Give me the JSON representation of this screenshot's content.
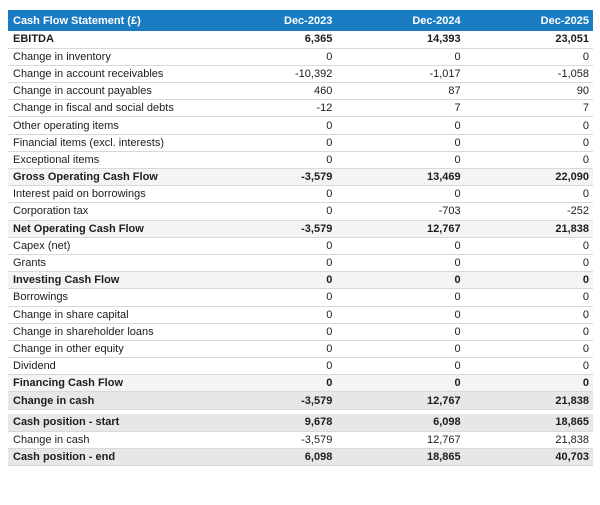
{
  "table": {
    "title": "Cash Flow Statement (£)",
    "columns": [
      "Dec-2023",
      "Dec-2024",
      "Dec-2025"
    ],
    "sections": [
      {
        "name": "cash-flow",
        "rows": [
          {
            "label": "EBITDA",
            "values": [
              "6,365",
              "14,393",
              "23,051"
            ],
            "style": "bold"
          },
          {
            "label": "Change in inventory",
            "values": [
              "0",
              "0",
              "0"
            ],
            "style": "normal"
          },
          {
            "label": "Change in account receivables",
            "values": [
              "-10,392",
              "-1,017",
              "-1,058"
            ],
            "style": "normal"
          },
          {
            "label": "Change in account payables",
            "values": [
              "460",
              "87",
              "90"
            ],
            "style": "normal"
          },
          {
            "label": "Change in fiscal and social debts",
            "values": [
              "-12",
              "7",
              "7"
            ],
            "style": "normal"
          },
          {
            "label": "Other operating items",
            "values": [
              "0",
              "0",
              "0"
            ],
            "style": "normal"
          },
          {
            "label": "Financial items (excl. interests)",
            "values": [
              "0",
              "0",
              "0"
            ],
            "style": "normal"
          },
          {
            "label": "Exceptional items",
            "values": [
              "0",
              "0",
              "0"
            ],
            "style": "normal"
          },
          {
            "label": "Gross Operating Cash Flow",
            "values": [
              "-3,579",
              "13,469",
              "22,090"
            ],
            "style": "subtotal"
          },
          {
            "label": "Interest paid on borrowings",
            "values": [
              "0",
              "0",
              "0"
            ],
            "style": "normal"
          },
          {
            "label": "Corporation tax",
            "values": [
              "0",
              "-703",
              "-252"
            ],
            "style": "normal"
          },
          {
            "label": "Net Operating Cash Flow",
            "values": [
              "-3,579",
              "12,767",
              "21,838"
            ],
            "style": "subtotal"
          },
          {
            "label": "Capex (net)",
            "values": [
              "0",
              "0",
              "0"
            ],
            "style": "normal"
          },
          {
            "label": "Grants",
            "values": [
              "0",
              "0",
              "0"
            ],
            "style": "normal"
          },
          {
            "label": "Investing Cash Flow",
            "values": [
              "0",
              "0",
              "0"
            ],
            "style": "subtotal"
          },
          {
            "label": "Borrowings",
            "values": [
              "0",
              "0",
              "0"
            ],
            "style": "normal"
          },
          {
            "label": "Change in share capital",
            "values": [
              "0",
              "0",
              "0"
            ],
            "style": "normal"
          },
          {
            "label": "Change in shareholder loans",
            "values": [
              "0",
              "0",
              "0"
            ],
            "style": "normal"
          },
          {
            "label": "Change in other equity",
            "values": [
              "0",
              "0",
              "0"
            ],
            "style": "normal"
          },
          {
            "label": "Dividend",
            "values": [
              "0",
              "0",
              "0"
            ],
            "style": "normal"
          },
          {
            "label": "Financing Cash Flow",
            "values": [
              "0",
              "0",
              "0"
            ],
            "style": "subtotal"
          },
          {
            "label": "Change in cash",
            "values": [
              "-3,579",
              "12,767",
              "21,838"
            ],
            "style": "highlight"
          }
        ]
      },
      {
        "name": "cash-position",
        "rows": [
          {
            "label": "Cash position - start",
            "values": [
              "9,678",
              "6,098",
              "18,865"
            ],
            "style": "highlight"
          },
          {
            "label": "Change in cash",
            "values": [
              "-3,579",
              "12,767",
              "21,838"
            ],
            "style": "normal"
          },
          {
            "label": "Cash position - end",
            "values": [
              "6,098",
              "18,865",
              "40,703"
            ],
            "style": "highlight"
          }
        ]
      }
    ]
  },
  "colors": {
    "header_bg": "#1a7dc4",
    "header_text": "#ffffff",
    "subtotal_bg": "#f4f4f4",
    "highlight_bg": "#e7e7e7",
    "row_border": "#d9d9d9",
    "text": "#1d1d1d"
  }
}
